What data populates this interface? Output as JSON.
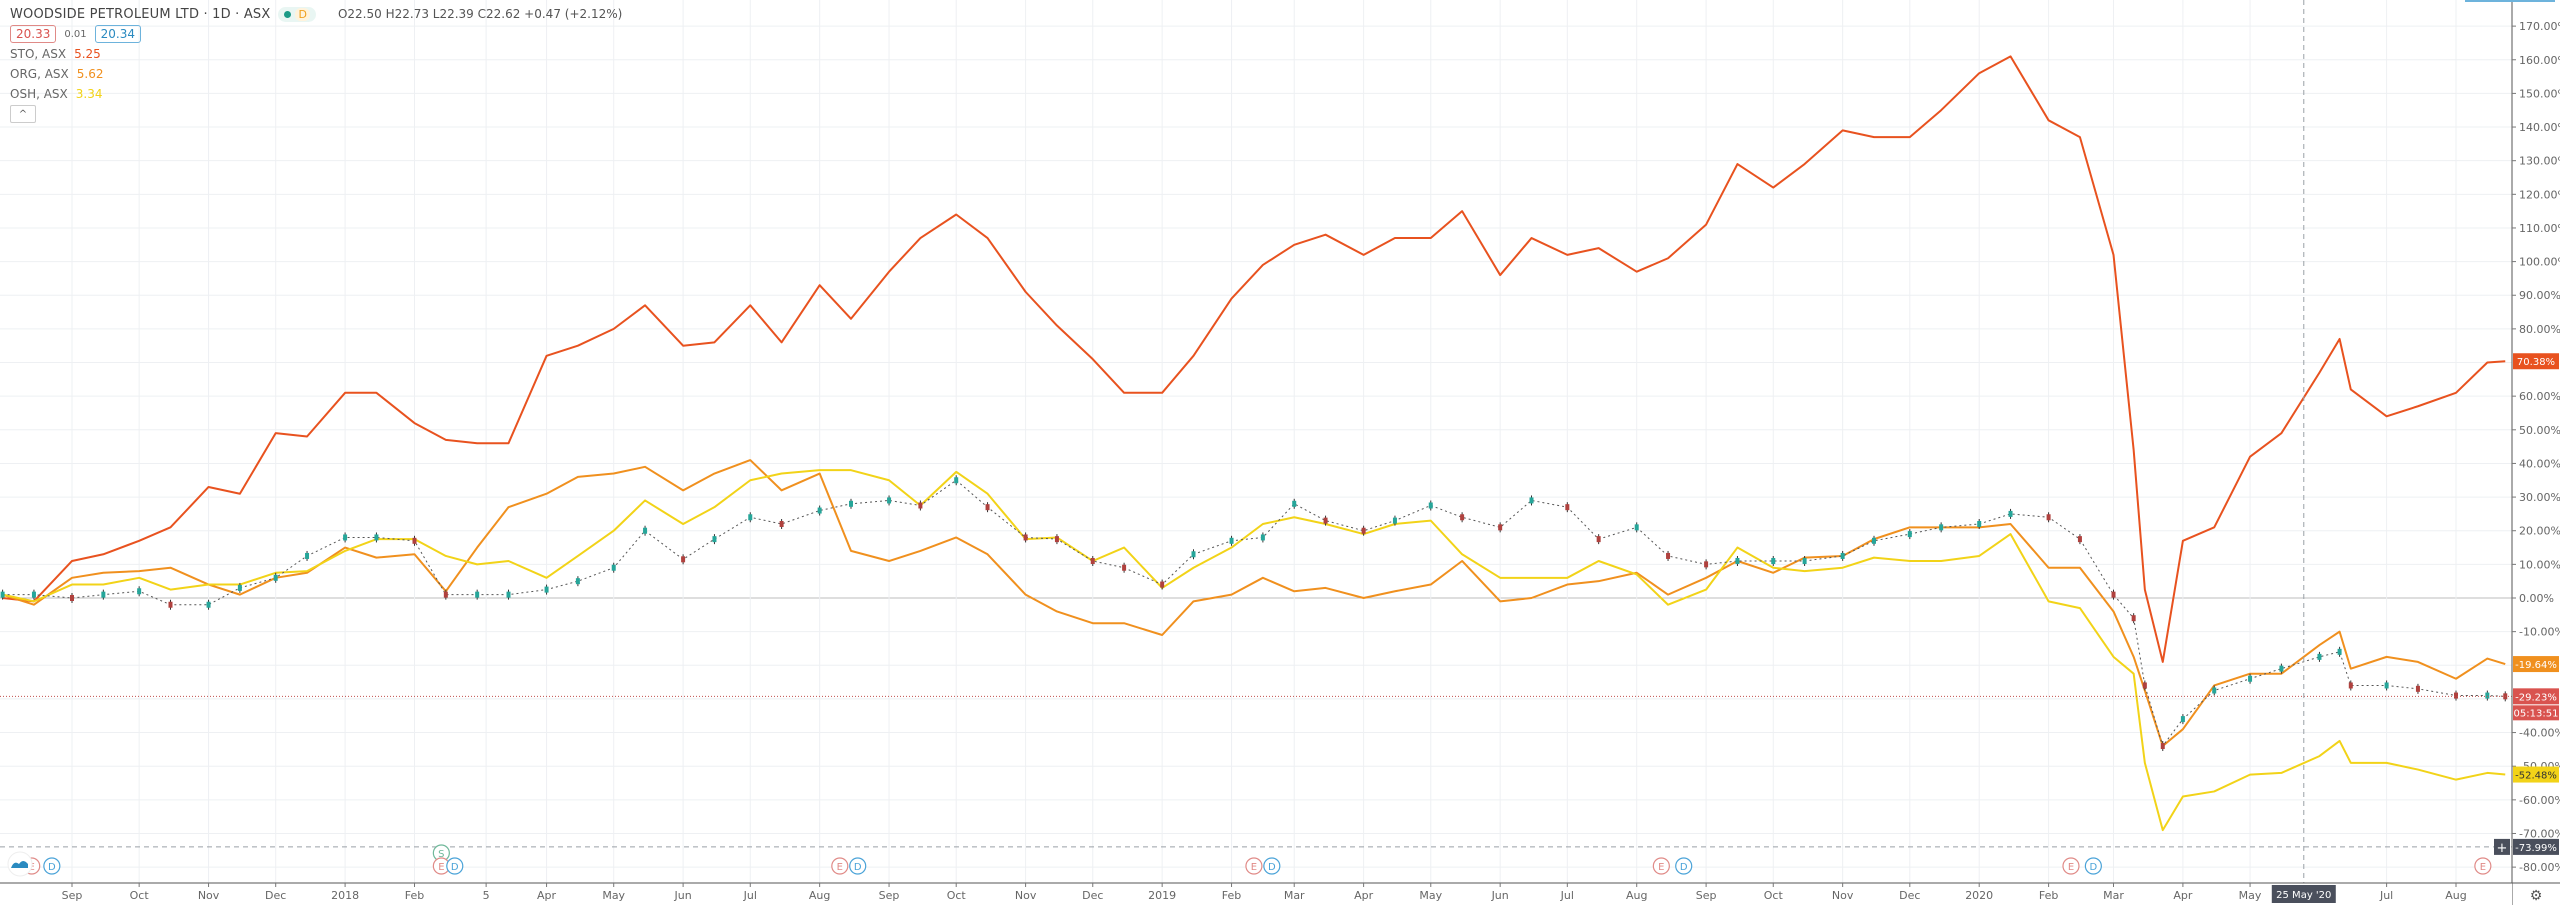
{
  "header": {
    "title": "WOODSIDE PETROLEUM LTD · 1D · ASX",
    "status_letter": "D",
    "ohlc": "O22.50 H22.73 L22.39 C22.62 +0.47 (+2.12%)",
    "bid": "20.33",
    "spread": "0.01",
    "ask": "20.34",
    "collapse_icon": "chevron-up-icon"
  },
  "compare": [
    {
      "symbol": "STO, ASX",
      "price": "5.25",
      "color": "#e8521f"
    },
    {
      "symbol": "ORG, ASX",
      "price": "5.62",
      "color": "#f0901e"
    },
    {
      "symbol": "OSH, ASX",
      "price": "3.34",
      "color": "#f2d318"
    }
  ],
  "chart_data": {
    "type": "line",
    "y_unit": "%",
    "ylim": [
      -84,
      178
    ],
    "grid": true,
    "y_ticks": [
      "170.00%",
      "160.00%",
      "150.00%",
      "140.00%",
      "130.00%",
      "120.00%",
      "110.00%",
      "100.00%",
      "90.00%",
      "80.00%",
      "60.00%",
      "50.00%",
      "40.00%",
      "30.00%",
      "20.00%",
      "10.00%",
      "0.00%",
      "-10.00%",
      "-40.00%",
      "-50.00%",
      "-60.00%",
      "-70.00%",
      "-80.00%"
    ],
    "y_tick_values": [
      170,
      160,
      150,
      140,
      130,
      120,
      110,
      100,
      90,
      80,
      60,
      50,
      40,
      30,
      20,
      10,
      0,
      -10,
      -40,
      -50,
      -60,
      -70,
      -80
    ],
    "x_ticks": [
      {
        "label": "Sep",
        "date": "2017-09-01"
      },
      {
        "label": "Oct",
        "date": "2017-10-01"
      },
      {
        "label": "Nov",
        "date": "2017-11-01"
      },
      {
        "label": "Dec",
        "date": "2017-12-01"
      },
      {
        "label": "2018",
        "date": "2018-01-01"
      },
      {
        "label": "Feb",
        "date": "2018-02-01"
      },
      {
        "label": "5",
        "date": "2018-03-05"
      },
      {
        "label": "Apr",
        "date": "2018-04-01"
      },
      {
        "label": "May",
        "date": "2018-05-01"
      },
      {
        "label": "Jun",
        "date": "2018-06-01"
      },
      {
        "label": "Jul",
        "date": "2018-07-01"
      },
      {
        "label": "Aug",
        "date": "2018-08-01"
      },
      {
        "label": "Sep",
        "date": "2018-09-01"
      },
      {
        "label": "Oct",
        "date": "2018-10-01"
      },
      {
        "label": "Nov",
        "date": "2018-11-01"
      },
      {
        "label": "Dec",
        "date": "2018-12-01"
      },
      {
        "label": "2019",
        "date": "2019-01-01"
      },
      {
        "label": "Feb",
        "date": "2019-02-01"
      },
      {
        "label": "Mar",
        "date": "2019-03-01"
      },
      {
        "label": "Apr",
        "date": "2019-04-01"
      },
      {
        "label": "May",
        "date": "2019-05-01"
      },
      {
        "label": "Jun",
        "date": "2019-06-01"
      },
      {
        "label": "Jul",
        "date": "2019-07-01"
      },
      {
        "label": "Aug",
        "date": "2019-08-01"
      },
      {
        "label": "Sep",
        "date": "2019-09-01"
      },
      {
        "label": "Oct",
        "date": "2019-10-01"
      },
      {
        "label": "Nov",
        "date": "2019-11-01"
      },
      {
        "label": "Dec",
        "date": "2019-12-01"
      },
      {
        "label": "2020",
        "date": "2020-01-01"
      },
      {
        "label": "Feb",
        "date": "2020-02-01"
      },
      {
        "label": "Mar",
        "date": "2020-03-01"
      },
      {
        "label": "Apr",
        "date": "2020-04-01"
      },
      {
        "label": "May",
        "date": "2020-05-01"
      },
      {
        "label": "Jul",
        "date": "2020-07-01"
      },
      {
        "label": "Aug",
        "date": "2020-08-01"
      }
    ],
    "x": [
      "2017-08-01",
      "2017-08-15",
      "2017-09-01",
      "2017-09-15",
      "2017-10-01",
      "2017-10-15",
      "2017-11-01",
      "2017-11-15",
      "2017-12-01",
      "2017-12-15",
      "2018-01-01",
      "2018-01-15",
      "2018-02-01",
      "2018-02-15",
      "2018-03-01",
      "2018-03-15",
      "2018-04-01",
      "2018-04-15",
      "2018-05-01",
      "2018-05-15",
      "2018-06-01",
      "2018-06-15",
      "2018-07-01",
      "2018-07-15",
      "2018-08-01",
      "2018-08-15",
      "2018-09-01",
      "2018-09-15",
      "2018-10-01",
      "2018-10-15",
      "2018-11-01",
      "2018-11-15",
      "2018-12-01",
      "2018-12-15",
      "2019-01-01",
      "2019-01-15",
      "2019-02-01",
      "2019-02-15",
      "2019-03-01",
      "2019-03-15",
      "2019-04-01",
      "2019-04-15",
      "2019-05-01",
      "2019-05-15",
      "2019-06-01",
      "2019-06-15",
      "2019-07-01",
      "2019-07-15",
      "2019-08-01",
      "2019-08-15",
      "2019-09-01",
      "2019-09-15",
      "2019-10-01",
      "2019-10-15",
      "2019-11-01",
      "2019-11-15",
      "2019-12-01",
      "2019-12-15",
      "2020-01-01",
      "2020-01-15",
      "2020-02-01",
      "2020-02-15",
      "2020-03-01",
      "2020-03-10",
      "2020-03-15",
      "2020-03-23",
      "2020-04-01",
      "2020-04-15",
      "2020-05-01",
      "2020-05-15",
      "2020-06-01",
      "2020-06-10",
      "2020-06-15",
      "2020-07-01",
      "2020-07-15",
      "2020-08-01",
      "2020-08-15",
      "2020-08-23"
    ],
    "series": [
      {
        "name": "STO",
        "style": "line",
        "color": "#e8521f",
        "last_label": "70.38%",
        "values": [
          0,
          -1,
          11,
          13,
          17,
          21,
          33,
          31,
          49,
          48,
          61,
          61,
          52,
          47,
          46,
          46,
          72,
          75,
          80,
          87,
          75,
          76,
          87,
          76,
          93,
          83,
          97,
          107,
          114,
          107,
          91,
          81,
          71,
          61,
          61,
          72,
          89,
          99,
          105,
          108,
          102,
          107,
          107,
          115,
          96,
          107,
          102,
          104,
          97,
          101,
          111,
          129,
          122,
          129,
          139,
          137,
          137,
          145,
          156,
          161,
          142,
          137,
          102,
          44,
          2.5,
          -19,
          17,
          21,
          42,
          49,
          67,
          77,
          62,
          54,
          57,
          61,
          70,
          70.38
        ]
      },
      {
        "name": "ORG",
        "style": "line",
        "color": "#f0901e",
        "last_label": "-19.64%",
        "values": [
          1,
          -2,
          6,
          7.5,
          8,
          9,
          4,
          1,
          6,
          7.5,
          15,
          12,
          13,
          2,
          15,
          27,
          31,
          36,
          37,
          39,
          32,
          37,
          41,
          32,
          37,
          14,
          11,
          14,
          18,
          13,
          1,
          -4,
          -7.5,
          -7.5,
          -11,
          -1,
          1,
          6,
          2,
          3,
          0,
          2,
          4,
          11,
          -1,
          0,
          4,
          5,
          7.5,
          1,
          6,
          11,
          7.5,
          12,
          12.5,
          17.5,
          21,
          21,
          21,
          22,
          9,
          9,
          -4,
          -17.5,
          -27.5,
          -44,
          -39,
          -26,
          -22.5,
          -22.5,
          -14,
          -10,
          -21,
          -17.5,
          -19,
          -24,
          -18,
          -19.64
        ]
      },
      {
        "name": "OSH",
        "style": "line",
        "color": "#f2d318",
        "last_label": "-52.48%",
        "values": [
          1,
          -1,
          4,
          4,
          6,
          2.5,
          4,
          4,
          7.5,
          8,
          14,
          17.5,
          17.5,
          12.5,
          10,
          11,
          6,
          12.5,
          20,
          29,
          22,
          27,
          35,
          37,
          38,
          38,
          35,
          27.5,
          37.5,
          31,
          17.5,
          18,
          11,
          15,
          3,
          9,
          15,
          22,
          24,
          22,
          19,
          22,
          23,
          13,
          6,
          6,
          6,
          11,
          7,
          -2,
          2.5,
          15,
          9,
          8,
          9,
          12,
          11,
          11,
          12.5,
          19,
          -1,
          -3,
          -17.5,
          -22.5,
          -49,
          -69,
          -59,
          -57.5,
          -52.5,
          -52,
          -47,
          -42.5,
          -49,
          -49,
          -51,
          -54,
          -52,
          -52.48
        ]
      },
      {
        "name": "WPL",
        "style": "candles",
        "color": "#333333",
        "up_color": "#26a69a",
        "down_color": "#b0413e",
        "last_label": "-29.23%",
        "countdown": "05:13:51",
        "values": [
          1,
          1,
          0,
          1,
          2,
          -2,
          -2,
          3,
          6,
          12.5,
          18,
          18,
          17,
          1,
          1,
          1,
          2.5,
          5,
          9,
          20,
          11.5,
          17.5,
          24,
          22,
          26,
          28,
          29,
          27.5,
          35,
          27,
          18,
          17.5,
          11,
          9,
          4,
          13,
          17,
          18,
          28,
          23,
          20,
          23,
          27.5,
          24,
          21,
          29,
          27,
          17.5,
          21,
          12.5,
          10,
          11,
          11,
          11,
          12.5,
          17,
          19,
          21,
          22,
          25,
          24,
          17.5,
          1,
          -6,
          -26,
          -44,
          -36,
          -27.5,
          -24,
          -21,
          -17.5,
          -16,
          -26,
          -26,
          -27,
          -29,
          -29,
          -29.23
        ]
      }
    ],
    "crosshair": {
      "date_label": "25 May '20",
      "date": "2020-05-25",
      "value_label": "-73.99%",
      "value": -73.99
    },
    "events": [
      {
        "type": "E",
        "date": "2017-08-14",
        "color": "#e08a87"
      },
      {
        "type": "D",
        "date": "2017-08-23",
        "color": "#4aa3d8"
      },
      {
        "type": "S",
        "date": "2018-02-13",
        "color": "#6fb89a",
        "row": "upper"
      },
      {
        "type": "E",
        "date": "2018-02-13",
        "color": "#e08a87"
      },
      {
        "type": "D",
        "date": "2018-02-19",
        "color": "#4aa3d8"
      },
      {
        "type": "E",
        "date": "2018-08-10",
        "color": "#e08a87"
      },
      {
        "type": "D",
        "date": "2018-08-18",
        "color": "#4aa3d8"
      },
      {
        "type": "E",
        "date": "2019-02-11",
        "color": "#e08a87"
      },
      {
        "type": "D",
        "date": "2019-02-19",
        "color": "#4aa3d8"
      },
      {
        "type": "E",
        "date": "2019-08-12",
        "color": "#e08a87"
      },
      {
        "type": "D",
        "date": "2019-08-22",
        "color": "#4aa3d8"
      },
      {
        "type": "E",
        "date": "2020-02-11",
        "color": "#e08a87"
      },
      {
        "type": "D",
        "date": "2020-02-21",
        "color": "#4aa3d8"
      },
      {
        "type": "E",
        "date": "2020-08-13",
        "color": "#e08a87"
      }
    ]
  }
}
